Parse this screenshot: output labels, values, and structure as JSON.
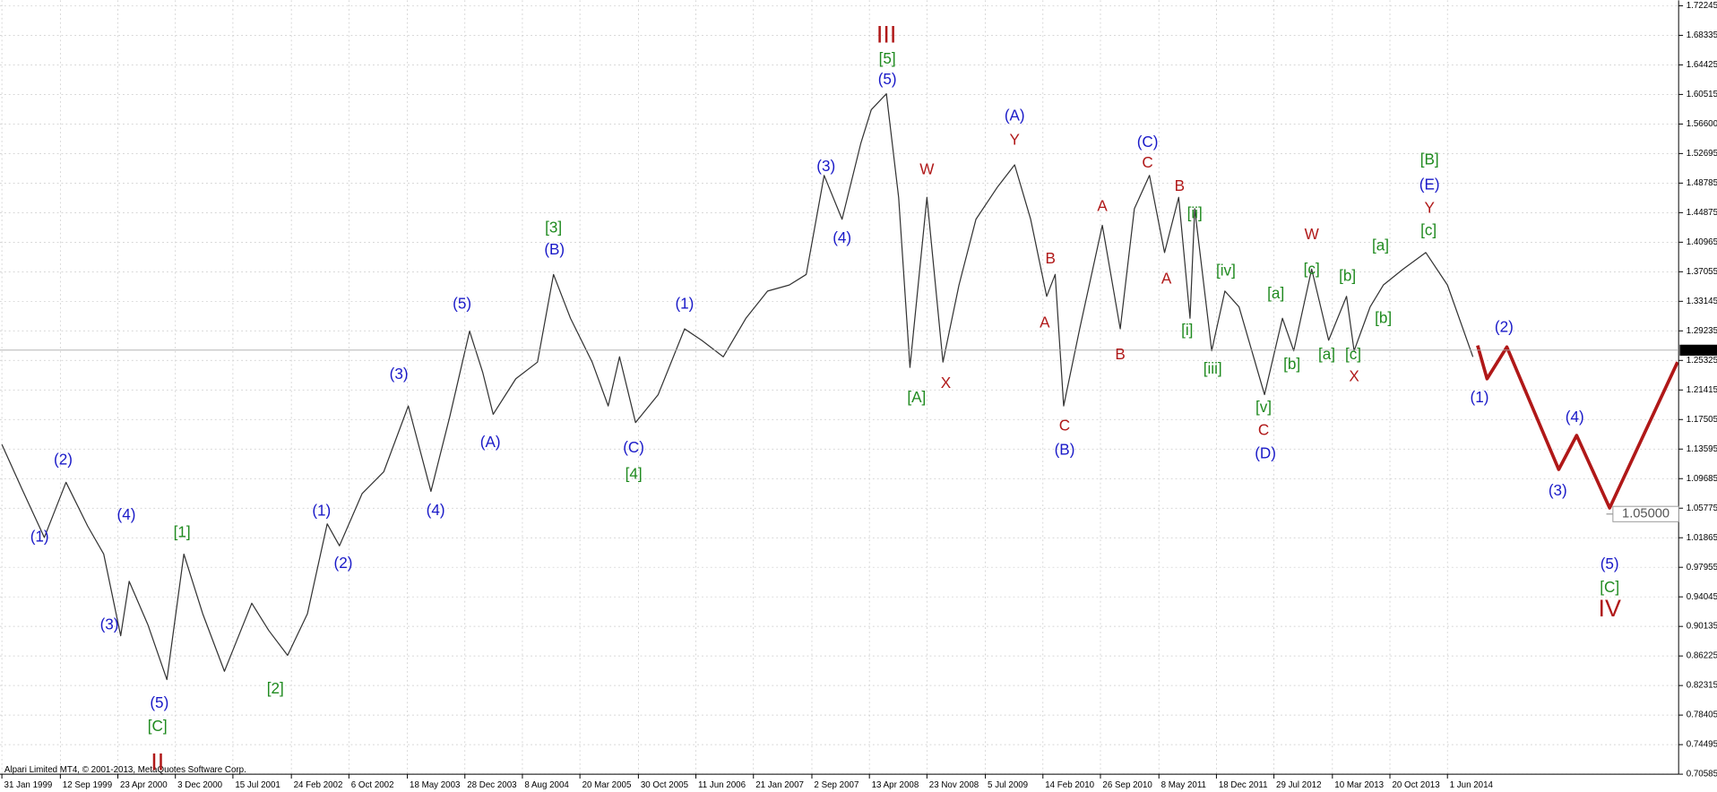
{
  "chart_data": {
    "type": "line",
    "xlim": [
      1999.06,
      2016.85
    ],
    "ylim": [
      0.70585,
      1.72245
    ],
    "grid": true,
    "xticks": [
      {
        "value": 1999.08,
        "label": "31 Jan 1999"
      },
      {
        "value": 1999.7,
        "label": "12 Sep 1999"
      },
      {
        "value": 2000.31,
        "label": "23 Apr 2000"
      },
      {
        "value": 2000.92,
        "label": "3 Dec 2000"
      },
      {
        "value": 2001.53,
        "label": "15 Jul 2001"
      },
      {
        "value": 2002.15,
        "label": "24 Feb 2002"
      },
      {
        "value": 2002.76,
        "label": "6 Oct 2002"
      },
      {
        "value": 2003.38,
        "label": "18 May 2003"
      },
      {
        "value": 2003.99,
        "label": "28 Dec 2003"
      },
      {
        "value": 2004.6,
        "label": "8 Aug 2004"
      },
      {
        "value": 2005.21,
        "label": "20 Mar 2005"
      },
      {
        "value": 2005.83,
        "label": "30 Oct 2005"
      },
      {
        "value": 2006.44,
        "label": "11 Jun 2006"
      },
      {
        "value": 2007.05,
        "label": "21 Jan 2007"
      },
      {
        "value": 2007.67,
        "label": "2 Sep 2007"
      },
      {
        "value": 2008.28,
        "label": "13 Apr 2008"
      },
      {
        "value": 2008.89,
        "label": "23 Nov 2008"
      },
      {
        "value": 2009.51,
        "label": "5 Jul 2009"
      },
      {
        "value": 2010.12,
        "label": "14 Feb 2010"
      },
      {
        "value": 2010.73,
        "label": "26 Sep 2010"
      },
      {
        "value": 2011.35,
        "label": "8 May 2011"
      },
      {
        "value": 2011.96,
        "label": "18 Dec 2011"
      },
      {
        "value": 2012.57,
        "label": "29 Jul 2012"
      },
      {
        "value": 2013.19,
        "label": "10 Mar 2013"
      },
      {
        "value": 2013.8,
        "label": "20 Oct 2013"
      },
      {
        "value": 2014.41,
        "label": "1 Jun 2014"
      }
    ],
    "yticks": [
      1.72245,
      1.68335,
      1.64425,
      1.60515,
      {
        "value": 1.566,
        "label": "1.56600"
      },
      1.52695,
      1.48785,
      1.44875,
      1.40965,
      1.37055,
      1.33145,
      1.29235,
      1.25325,
      1.21415,
      1.17505,
      1.13595,
      1.09685,
      1.05775,
      1.01865,
      0.97955,
      0.94045,
      0.90135,
      0.86225,
      0.82315,
      0.78405,
      0.74495,
      0.70585
    ],
    "series": [
      {
        "color": "#333333",
        "width": 1,
        "x": [
          1999.08,
          1999.29,
          1999.53,
          1999.76,
          1999.99,
          2000.16,
          2000.34,
          2000.43,
          2000.63,
          2000.83,
          2001.01,
          2001.21,
          2001.44,
          2001.73,
          2001.91,
          2002.11,
          2002.32,
          2002.53,
          2002.66,
          2002.9,
          2003.13,
          2003.39,
          2003.63,
          2003.83,
          2004.04,
          2004.18,
          2004.29,
          2004.53,
          2004.76,
          2004.93,
          2005.11,
          2005.34,
          2005.51,
          2005.63,
          2005.8,
          2006.04,
          2006.32,
          2006.5,
          2006.73,
          2006.97,
          2007.2,
          2007.43,
          2007.61,
          2007.8,
          2007.99,
          2008.19,
          2008.3,
          2008.46,
          2008.59,
          2008.71,
          2008.89,
          2009.06,
          2009.23,
          2009.41,
          2009.64,
          2009.82,
          2009.99,
          2010.16,
          2010.25,
          2010.34,
          2010.51,
          2010.75,
          2010.94,
          2011.09,
          2011.25,
          2011.41,
          2011.56,
          2011.68,
          2011.73,
          2011.91,
          2012.05,
          2012.2,
          2012.47,
          2012.66,
          2012.78,
          2012.97,
          2013.15,
          2013.34,
          2013.42,
          2013.59,
          2013.73,
          2013.94,
          2014.18,
          2014.41,
          2014.68
        ],
        "values": [
          1.142,
          1.084,
          1.019,
          1.092,
          1.034,
          0.997,
          0.889,
          0.961,
          0.903,
          0.831,
          0.997,
          0.918,
          0.842,
          0.932,
          0.896,
          0.863,
          0.918,
          1.037,
          1.008,
          1.077,
          1.106,
          1.193,
          1.08,
          1.179,
          1.292,
          1.237,
          1.182,
          1.229,
          1.251,
          1.367,
          1.309,
          1.251,
          1.193,
          1.258,
          1.171,
          1.208,
          1.295,
          1.28,
          1.258,
          1.309,
          1.345,
          1.353,
          1.367,
          1.498,
          1.44,
          1.541,
          1.585,
          1.606,
          1.469,
          1.244,
          1.469,
          1.251,
          1.353,
          1.44,
          1.483,
          1.512,
          1.44,
          1.338,
          1.367,
          1.193,
          1.295,
          1.432,
          1.295,
          1.454,
          1.498,
          1.396,
          1.469,
          1.309,
          1.454,
          1.266,
          1.345,
          1.324,
          1.208,
          1.309,
          1.266,
          1.374,
          1.28,
          1.338,
          1.266,
          1.324,
          1.353,
          1.374,
          1.396,
          1.353,
          1.258
        ]
      },
      {
        "color": "#b01818",
        "width": 3,
        "x": [
          2014.73,
          2014.83,
          2015.04,
          2015.59,
          2015.78,
          2016.13,
          2016.85
        ],
        "values": [
          1.273,
          1.229,
          1.271,
          1.109,
          1.154,
          1.058,
          1.251
        ]
      }
    ],
    "current_price": {
      "value": 1.26679,
      "label": "1.26679"
    },
    "target": {
      "x": 2016.13,
      "value": 1.05,
      "label": "1.05000"
    },
    "annotation_groups": [
      {
        "color": "#1a1ac8",
        "large": false,
        "labels": [
          {
            "text": "(1)",
            "x": 1999.48,
            "y": 1.019
          },
          {
            "text": "(2)",
            "x": 1999.73,
            "y": 1.121
          },
          {
            "text": "(4)",
            "x": 2000.4,
            "y": 1.048
          },
          {
            "text": "(3)",
            "x": 2000.22,
            "y": 0.903
          },
          {
            "text": "(5)",
            "x": 2000.75,
            "y": 0.799
          },
          {
            "text": "(1)",
            "x": 2002.47,
            "y": 1.053
          },
          {
            "text": "(2)",
            "x": 2002.7,
            "y": 0.984
          },
          {
            "text": "(3)",
            "x": 2003.29,
            "y": 1.234
          },
          {
            "text": "(4)",
            "x": 2003.68,
            "y": 1.054
          },
          {
            "text": "(5)",
            "x": 2003.96,
            "y": 1.327
          },
          {
            "text": "(A)",
            "x": 2004.26,
            "y": 1.144
          },
          {
            "text": "(B)",
            "x": 2004.94,
            "y": 1.399
          },
          {
            "text": "(C)",
            "x": 2005.78,
            "y": 1.137
          },
          {
            "text": "(1)",
            "x": 2006.32,
            "y": 1.327
          },
          {
            "text": "(3)",
            "x": 2007.82,
            "y": 1.509
          },
          {
            "text": "(4)",
            "x": 2007.99,
            "y": 1.414
          },
          {
            "text": "(5)",
            "x": 2008.47,
            "y": 1.624
          },
          {
            "text": "(A)",
            "x": 2009.82,
            "y": 1.576
          },
          {
            "text": "(B)",
            "x": 2010.35,
            "y": 1.134
          },
          {
            "text": "(C)",
            "x": 2011.23,
            "y": 1.541
          },
          {
            "text": "(D)",
            "x": 2012.48,
            "y": 1.129
          },
          {
            "text": "(E)",
            "x": 2014.22,
            "y": 1.485
          },
          {
            "text": "(1)",
            "x": 2014.75,
            "y": 1.203
          },
          {
            "text": "(2)",
            "x": 2015.01,
            "y": 1.296
          },
          {
            "text": "(3)",
            "x": 2015.58,
            "y": 1.08
          },
          {
            "text": "(4)",
            "x": 2015.76,
            "y": 1.177
          },
          {
            "text": "(5)",
            "x": 2016.13,
            "y": 0.983
          }
        ]
      },
      {
        "color": "#1f8a1f",
        "large": false,
        "labels": [
          {
            "text": "[C]",
            "x": 2000.73,
            "y": 0.768
          },
          {
            "text": "[1]",
            "x": 2000.99,
            "y": 1.025
          },
          {
            "text": "[2]",
            "x": 2001.98,
            "y": 0.818
          },
          {
            "text": "[3]",
            "x": 2004.93,
            "y": 1.428
          },
          {
            "text": "[4]",
            "x": 2005.78,
            "y": 1.102
          },
          {
            "text": "[5]",
            "x": 2008.47,
            "y": 1.651
          },
          {
            "text": "[A]",
            "x": 2008.78,
            "y": 1.203
          },
          {
            "text": "[ii]",
            "x": 2011.73,
            "y": 1.447
          },
          {
            "text": "[i]",
            "x": 2011.65,
            "y": 1.292
          },
          {
            "text": "[iv]",
            "x": 2012.06,
            "y": 1.371
          },
          {
            "text": "[iii]",
            "x": 2011.92,
            "y": 1.241
          },
          {
            "text": "[v]",
            "x": 2012.46,
            "y": 1.19
          },
          {
            "text": "[a]",
            "x": 2012.59,
            "y": 1.341
          },
          {
            "text": "[b]",
            "x": 2012.76,
            "y": 1.247
          },
          {
            "text": "[c]",
            "x": 2012.97,
            "y": 1.373
          },
          {
            "text": "[a]",
            "x": 2013.13,
            "y": 1.26
          },
          {
            "text": "[b]",
            "x": 2013.35,
            "y": 1.364
          },
          {
            "text": "[c]",
            "x": 2013.41,
            "y": 1.26
          },
          {
            "text": "[b]",
            "x": 2013.73,
            "y": 1.308
          },
          {
            "text": "[a]",
            "x": 2013.7,
            "y": 1.404
          },
          {
            "text": "[c]",
            "x": 2014.21,
            "y": 1.424
          },
          {
            "text": "[B]",
            "x": 2014.22,
            "y": 1.518
          },
          {
            "text": "[C]",
            "x": 2016.13,
            "y": 0.952
          }
        ]
      },
      {
        "color": "#b01818",
        "large": false,
        "labels": [
          {
            "text": "W",
            "x": 2008.89,
            "y": 1.505
          },
          {
            "text": "X",
            "x": 2009.09,
            "y": 1.222
          },
          {
            "text": "Y",
            "x": 2009.82,
            "y": 1.544
          },
          {
            "text": "B",
            "x": 2010.2,
            "y": 1.387
          },
          {
            "text": "A",
            "x": 2010.14,
            "y": 1.302
          },
          {
            "text": "C",
            "x": 2010.35,
            "y": 1.166
          },
          {
            "text": "A",
            "x": 2010.75,
            "y": 1.456
          },
          {
            "text": "B",
            "x": 2010.94,
            "y": 1.26
          },
          {
            "text": "C",
            "x": 2011.23,
            "y": 1.514
          },
          {
            "text": "B",
            "x": 2011.57,
            "y": 1.483
          },
          {
            "text": "A",
            "x": 2011.43,
            "y": 1.36
          },
          {
            "text": "C",
            "x": 2012.46,
            "y": 1.16
          },
          {
            "text": "W",
            "x": 2012.97,
            "y": 1.419
          },
          {
            "text": "X",
            "x": 2013.42,
            "y": 1.231
          },
          {
            "text": "Y",
            "x": 2014.22,
            "y": 1.454
          }
        ]
      },
      {
        "color": "#b01818",
        "large": true,
        "labels": [
          {
            "text": "III",
            "x": 2008.46,
            "y": 1.682
          },
          {
            "text": "II",
            "x": 2000.73,
            "y": 0.72
          },
          {
            "text": "IV",
            "x": 2016.13,
            "y": 0.923
          }
        ]
      }
    ],
    "copyright": "Alpari Limited MT4, © 2001-2013, MetaQuotes Software Corp."
  }
}
